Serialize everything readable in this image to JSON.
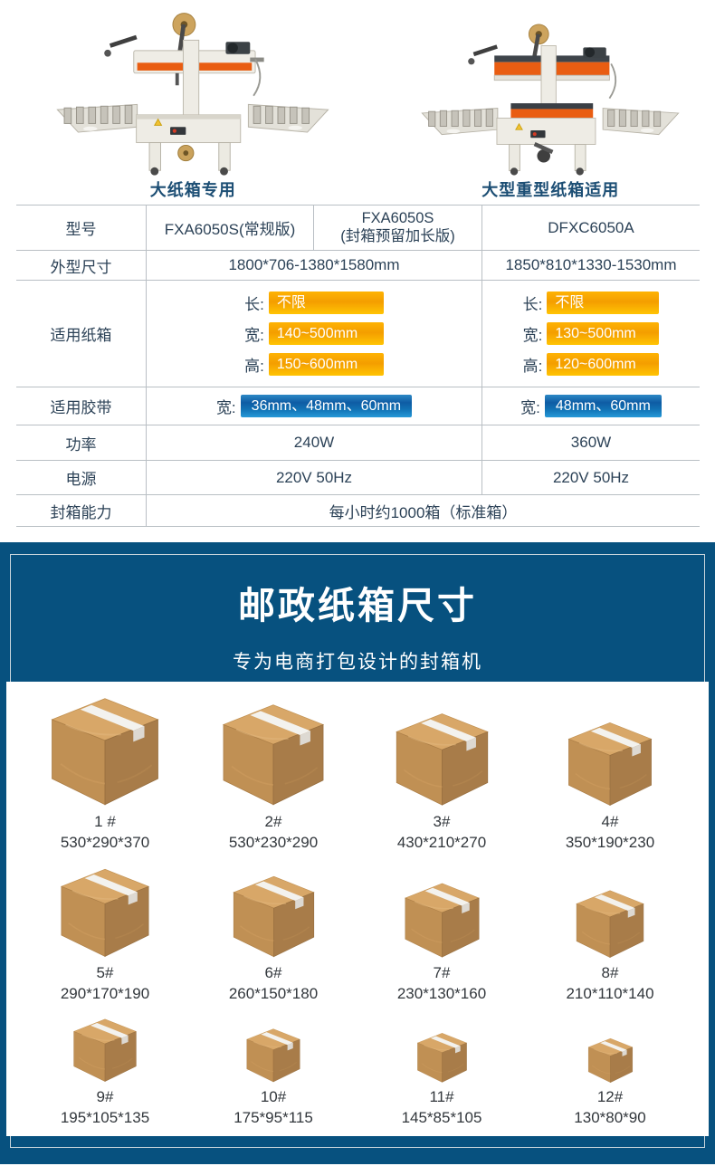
{
  "products": [
    {
      "caption": "大纸箱专用"
    },
    {
      "caption": "大型重型纸箱适用"
    }
  ],
  "spec_table": {
    "model_label": "型号",
    "model_col1": "FXA6050S(常规版)",
    "model_col2_line1": "FXA6050S",
    "model_col2_line2": "(封箱预留加长版)",
    "model_col3": "DFXC6050A",
    "dims_label": "外型尺寸",
    "dims_left": "1800*706-1380*1580mm",
    "dims_right": "1850*810*1330-1530mm",
    "carton_label": "适用纸箱",
    "carton_left": [
      {
        "k": "长:",
        "v": "不限"
      },
      {
        "k": "宽:",
        "v": "140~500mm"
      },
      {
        "k": "高:",
        "v": "150~600mm"
      }
    ],
    "carton_right": [
      {
        "k": "长:",
        "v": "不限"
      },
      {
        "k": "宽:",
        "v": "130~500mm"
      },
      {
        "k": "高:",
        "v": "120~600mm"
      }
    ],
    "tape_label": "适用胶带",
    "tape_left_k": "宽:",
    "tape_left_v": "36mm、48mm、60mm",
    "tape_right_k": "宽:",
    "tape_right_v": "48mm、60mm",
    "power_label": "功率",
    "power_left": "240W",
    "power_right": "360W",
    "supply_label": "电源",
    "supply_left": "220V 50Hz",
    "supply_right": "220V 50Hz",
    "capacity_label": "封箱能力",
    "capacity_value": "每小时约1000箱（标准箱）"
  },
  "banner": {
    "title": "邮政纸箱尺寸",
    "subtitle": "专为电商打包设计的封箱机"
  },
  "boxes": [
    {
      "num": "1 #",
      "dims": "530*290*370"
    },
    {
      "num": "2#",
      "dims": "530*230*290"
    },
    {
      "num": "3#",
      "dims": "430*210*270"
    },
    {
      "num": "4#",
      "dims": "350*190*230"
    },
    {
      "num": "5#",
      "dims": "290*170*190"
    },
    {
      "num": "6#",
      "dims": "260*150*180"
    },
    {
      "num": "7#",
      "dims": "230*130*160"
    },
    {
      "num": "8#",
      "dims": "210*110*140"
    },
    {
      "num": "9#",
      "dims": "195*105*135"
    },
    {
      "num": "10#",
      "dims": "175*95*115"
    },
    {
      "num": "11#",
      "dims": "145*85*105"
    },
    {
      "num": "12#",
      "dims": "130*80*90"
    }
  ],
  "colors": {
    "banner_blue": "#07517f",
    "chip_yellow": "#f9a802",
    "chip_blue": "#1172b5",
    "caption_navy": "#1c4e74"
  }
}
